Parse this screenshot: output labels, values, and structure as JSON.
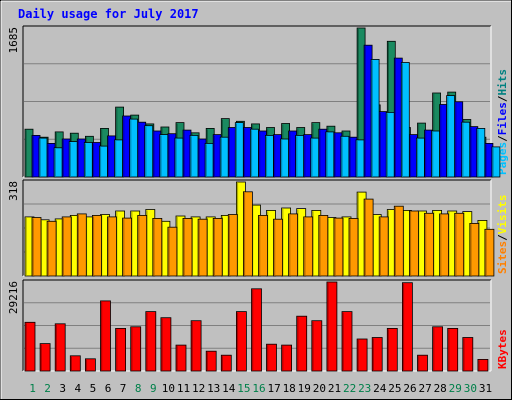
{
  "chart_data": [
    {
      "type": "bar",
      "panel": "pages-files-hits",
      "title": "Daily usage for July 2017",
      "y_max_label": "1685",
      "right_labels": [
        {
          "text": "Pages",
          "color": "#00c0ff"
        },
        {
          "text": "/",
          "color": "#000000"
        },
        {
          "text": "Files",
          "color": "#0000ff"
        },
        {
          "text": "/",
          "color": "#000000"
        },
        {
          "text": "Hits",
          "color": "#008080"
        }
      ],
      "ylim": [
        0,
        1685
      ],
      "series": [
        {
          "name": "Hits",
          "color": "#1a8a60",
          "values": [
            540,
            450,
            510,
            495,
            460,
            550,
            790,
            700,
            600,
            565,
            615,
            500,
            550,
            660,
            630,
            600,
            560,
            605,
            560,
            615,
            575,
            520,
            1685,
            815,
            1535,
            560,
            610,
            950,
            960,
            650,
            450
          ]
        },
        {
          "name": "Files",
          "color": "#0000ff",
          "values": [
            470,
            380,
            430,
            430,
            390,
            465,
            690,
            620,
            520,
            490,
            530,
            430,
            480,
            560,
            560,
            520,
            480,
            520,
            480,
            540,
            500,
            450,
            1490,
            740,
            1345,
            480,
            530,
            820,
            850,
            570,
            380
          ]
        },
        {
          "name": "Pages",
          "color": "#00c0ff",
          "values": [
            440,
            330,
            400,
            390,
            350,
            420,
            655,
            580,
            480,
            440,
            470,
            380,
            450,
            615,
            540,
            470,
            430,
            470,
            440,
            510,
            460,
            420,
            1330,
            730,
            1295,
            440,
            520,
            920,
            620,
            550,
            340
          ]
        }
      ]
    },
    {
      "type": "bar",
      "panel": "sites-visits",
      "y_max_label": "318",
      "right_labels": [
        {
          "text": "Sites",
          "color": "#ff8000"
        },
        {
          "text": "/",
          "color": "#000000"
        },
        {
          "text": "Visits",
          "color": "#ffff00"
        }
      ],
      "ylim": [
        0,
        318
      ],
      "series": [
        {
          "name": "Visits",
          "color": "#ffff00",
          "values": [
            200,
            190,
            193,
            205,
            200,
            208,
            220,
            220,
            225,
            185,
            203,
            200,
            200,
            205,
            318,
            240,
            222,
            230,
            228,
            222,
            198,
            200,
            284,
            208,
            225,
            222,
            220,
            222,
            220,
            218,
            188
          ]
        },
        {
          "name": "Sites",
          "color": "#ff9900",
          "values": [
            198,
            185,
            200,
            210,
            205,
            200,
            196,
            205,
            195,
            165,
            195,
            192,
            195,
            208,
            285,
            205,
            192,
            210,
            200,
            205,
            196,
            195,
            260,
            200,
            236,
            220,
            212,
            210,
            212,
            178,
            158
          ]
        }
      ]
    },
    {
      "type": "bar",
      "panel": "kbytes",
      "y_max_label": "29216",
      "right_labels": [
        {
          "text": "KBytes",
          "color": "#ff0000"
        }
      ],
      "ylim": [
        0,
        29216
      ],
      "series": [
        {
          "name": "KBytes",
          "color": "#ff0000",
          "values": [
            16000,
            9000,
            15500,
            5000,
            4000,
            23000,
            14000,
            14500,
            19500,
            17500,
            8500,
            16500,
            6500,
            5200,
            19500,
            27000,
            8800,
            8500,
            18000,
            16500,
            29216,
            19500,
            10500,
            11000,
            14000,
            29000,
            5200,
            14500,
            14000,
            11000,
            3800
          ]
        }
      ]
    }
  ],
  "x_labels": [
    "1",
    "2",
    "3",
    "4",
    "5",
    "6",
    "7",
    "8",
    "9",
    "10",
    "11",
    "12",
    "13",
    "14",
    "15",
    "16",
    "17",
    "18",
    "19",
    "20",
    "21",
    "22",
    "23",
    "24",
    "25",
    "26",
    "27",
    "28",
    "29",
    "30",
    "31"
  ],
  "weekend_days": [
    1,
    2,
    8,
    9,
    15,
    16,
    22,
    23,
    29,
    30
  ],
  "colors": {
    "background": "#c0c0c0",
    "title": "#0000ff",
    "weekday_label": "#000000",
    "weekend_label": "#00804a",
    "plot_bg": "#c0c0c0",
    "gridline": "#808080"
  }
}
